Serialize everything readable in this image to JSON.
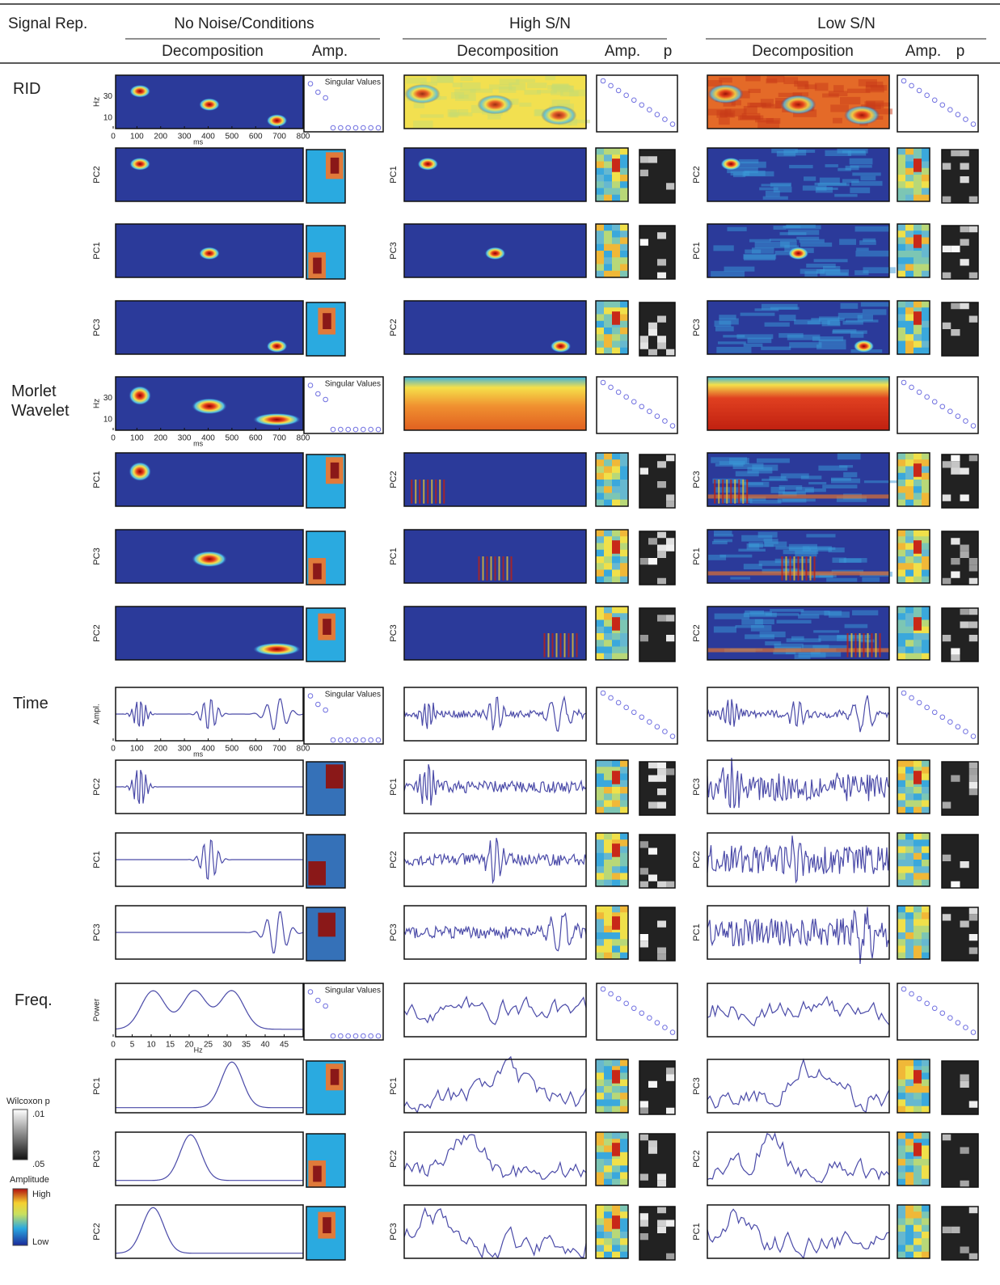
{
  "header": {
    "signal_rep": "Signal Rep.",
    "conditions": [
      {
        "title": "No Noise/Conditions",
        "decomposition": "Decomposition",
        "amp": "Amp."
      },
      {
        "title": "High S/N",
        "decomposition": "Decomposition",
        "amp": "Amp.",
        "p": "p"
      },
      {
        "title": "Low S/N",
        "decomposition": "Decomposition",
        "amp": "Amp.",
        "p": "p"
      }
    ]
  },
  "sections": [
    {
      "label": "RID",
      "ylabel": "Hz",
      "yticks": [
        "30",
        "10"
      ],
      "xticks": [
        "0",
        "100",
        "200",
        "300",
        "400",
        "500",
        "600",
        "700",
        "800"
      ],
      "xlabel": "ms",
      "singular_values": "Singular Values",
      "components": [
        [
          "PC2",
          "PC1",
          "PC3"
        ],
        [
          "PC1",
          "PC3",
          "PC2"
        ],
        [
          "PC2",
          "PC1",
          "PC3"
        ]
      ]
    },
    {
      "label": "Morlet Wavelet",
      "ylabel": "Hz",
      "yticks": [
        "30",
        "10"
      ],
      "xticks": [
        "0",
        "100",
        "200",
        "300",
        "400",
        "500",
        "600",
        "700",
        "800"
      ],
      "xlabel": "ms",
      "singular_values": "Singular Values",
      "components": [
        [
          "PC1",
          "PC3",
          "PC2"
        ],
        [
          "PC2",
          "PC1",
          "PC3"
        ],
        [
          "PC3",
          "PC1",
          "PC2"
        ]
      ]
    },
    {
      "label": "Time",
      "ylabel": "Ampl.",
      "xticks": [
        "0",
        "100",
        "200",
        "300",
        "400",
        "500",
        "600",
        "700",
        "800"
      ],
      "xlabel": "ms",
      "singular_values": "Singular Values",
      "components": [
        [
          "PC2",
          "PC1",
          "PC3"
        ],
        [
          "PC1",
          "PC2",
          "PC3"
        ],
        [
          "PC3",
          "PC2",
          "PC1"
        ]
      ]
    },
    {
      "label": "Freq.",
      "ylabel": "Power",
      "xticks": [
        "0",
        "5",
        "10",
        "15",
        "20",
        "25",
        "30",
        "35",
        "40",
        "45"
      ],
      "xlabel": "Hz",
      "singular_values": "Singular Values",
      "components": [
        [
          "PC1",
          "PC3",
          "PC2"
        ],
        [
          "PC1",
          "PC2",
          "PC3"
        ],
        [
          "PC3",
          "PC2",
          "PC1"
        ]
      ]
    }
  ],
  "legend": {
    "wilcoxon": "Wilcoxon p",
    "p_high": ".01",
    "p_low": ".05",
    "amplitude": "Amplitude",
    "high": "High",
    "low": "Low"
  }
}
